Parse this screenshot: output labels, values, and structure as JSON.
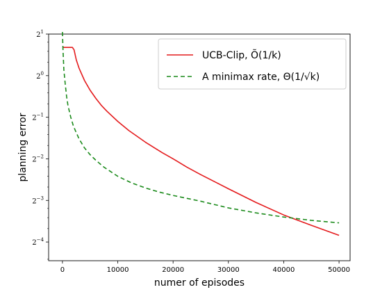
{
  "chart_data": {
    "type": "line",
    "xlabel": "numer of episodes",
    "ylabel": "planning error",
    "xlim": [
      -2500,
      52000
    ],
    "ylim_log2": [
      -4.45,
      1.0
    ],
    "y_scale": "log2",
    "grid": false,
    "legend_position": "top-right",
    "x_ticks": [
      {
        "value": 0,
        "label": "0"
      },
      {
        "value": 10000,
        "label": "10000"
      },
      {
        "value": 20000,
        "label": "20000"
      },
      {
        "value": 30000,
        "label": "30000"
      },
      {
        "value": 40000,
        "label": "40000"
      },
      {
        "value": 50000,
        "label": "50000"
      }
    ],
    "y_ticks": [
      {
        "exp": 1,
        "base": "2",
        "sup": "1"
      },
      {
        "exp": 0,
        "base": "2",
        "sup": "0"
      },
      {
        "exp": -1,
        "base": "2",
        "sup": "−1"
      },
      {
        "exp": -2,
        "base": "2",
        "sup": "−2"
      },
      {
        "exp": -3,
        "base": "2",
        "sup": "−3"
      },
      {
        "exp": -4,
        "base": "2",
        "sup": "−4"
      }
    ],
    "series": [
      {
        "name": "UCB-Clip, Õ(1/k)",
        "color": "#e41a1c",
        "dash": "solid",
        "x": [
          0,
          500,
          1000,
          1500,
          1800,
          2100,
          2500,
          3000,
          4000,
          5000,
          6000,
          7000,
          8000,
          10000,
          12000,
          15000,
          18000,
          20000,
          22500,
          25000,
          27500,
          30000,
          35000,
          40000,
          45000,
          50000
        ],
        "log2_y": [
          0.68,
          0.68,
          0.68,
          0.68,
          0.68,
          0.62,
          0.38,
          0.18,
          -0.12,
          -0.35,
          -0.54,
          -0.71,
          -0.85,
          -1.1,
          -1.32,
          -1.6,
          -1.85,
          -2.0,
          -2.2,
          -2.38,
          -2.55,
          -2.72,
          -3.05,
          -3.35,
          -3.6,
          -3.84
        ]
      },
      {
        "name": "A minimax rate, Θ(1/√k)",
        "color": "#1a8a1a",
        "dash": "dashed",
        "x": [
          0,
          100,
          250,
          500,
          750,
          1000,
          1500,
          2000,
          3000,
          4000,
          5000,
          6000,
          7500,
          10000,
          12500,
          15000,
          17500,
          20000,
          22500,
          25000,
          27500,
          30000,
          35000,
          40000,
          45000,
          50000
        ],
        "log2_y": [
          1.05,
          0.62,
          0.15,
          -0.2,
          -0.5,
          -0.72,
          -1.0,
          -1.22,
          -1.52,
          -1.74,
          -1.9,
          -2.03,
          -2.2,
          -2.42,
          -2.58,
          -2.7,
          -2.8,
          -2.88,
          -2.95,
          -3.02,
          -3.1,
          -3.18,
          -3.3,
          -3.4,
          -3.48,
          -3.54
        ]
      }
    ]
  }
}
